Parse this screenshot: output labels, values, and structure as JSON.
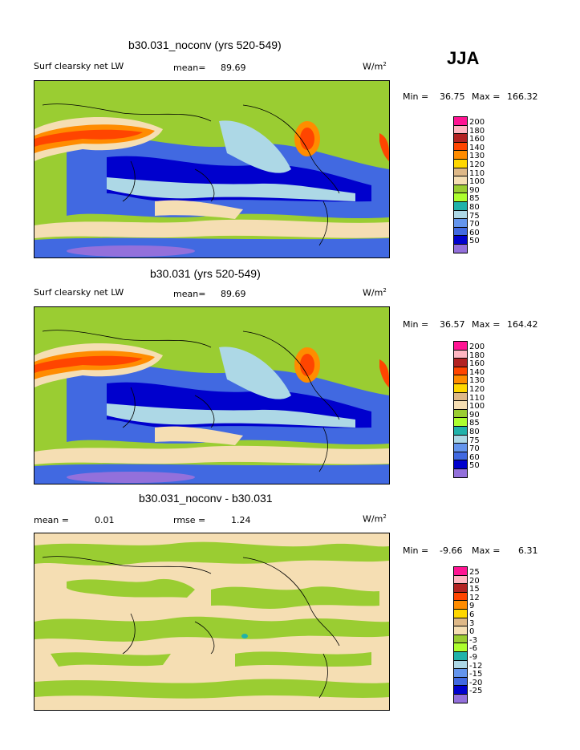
{
  "season": "JJA",
  "colors": {
    "c200": "#ff1493",
    "c180": "#ffb6c1",
    "c160": "#b22222",
    "c140": "#ff4500",
    "c130": "#ff8c00",
    "c120": "#ffd700",
    "c110": "#deb887",
    "c100": "#f5deb3",
    "c90": "#9acd32",
    "c85": "#adff2f",
    "c80": "#20b2aa",
    "c75": "#add8e6",
    "c70": "#6495ed",
    "c60": "#4169e1",
    "c50": "#0000cd",
    "clow": "#9370db"
  },
  "panels": [
    {
      "title": "b30.031_noconv (yrs 520-549)",
      "left_label": "Surf clearsky net LW",
      "mean_label": "mean=",
      "mean_value": "89.69",
      "units": "W/m",
      "units_sup": "2",
      "min_label": "Min =",
      "min_value": "36.75",
      "max_label": "Max =",
      "max_value": "166.32",
      "colorbar_labels": [
        "200",
        "180",
        "160",
        "140",
        "130",
        "120",
        "110",
        "100",
        "90",
        "85",
        "80",
        "75",
        "70",
        "60",
        "50"
      ]
    },
    {
      "title": "b30.031 (yrs 520-549)",
      "left_label": "Surf clearsky net LW",
      "mean_label": "mean=",
      "mean_value": "89.69",
      "units": "W/m",
      "units_sup": "2",
      "min_label": "Min =",
      "min_value": "36.57",
      "max_label": "Max =",
      "max_value": "164.42",
      "colorbar_labels": [
        "200",
        "180",
        "160",
        "140",
        "130",
        "120",
        "110",
        "100",
        "90",
        "85",
        "80",
        "75",
        "70",
        "60",
        "50"
      ]
    },
    {
      "title": "b30.031_noconv - b30.031",
      "mean_label": "mean =",
      "mean_value": "0.01",
      "rmse_label": "rmse =",
      "rmse_value": "1.24",
      "units": "W/m",
      "units_sup": "2",
      "min_label": "Min =",
      "min_value": "-9.66",
      "max_label": "Max =",
      "max_value": "6.31",
      "colorbar_labels": [
        "25",
        "20",
        "15",
        "12",
        "9",
        "6",
        "3",
        "0",
        "-3",
        "-6",
        "-9",
        "-12",
        "-15",
        "-20",
        "-25"
      ]
    }
  ]
}
